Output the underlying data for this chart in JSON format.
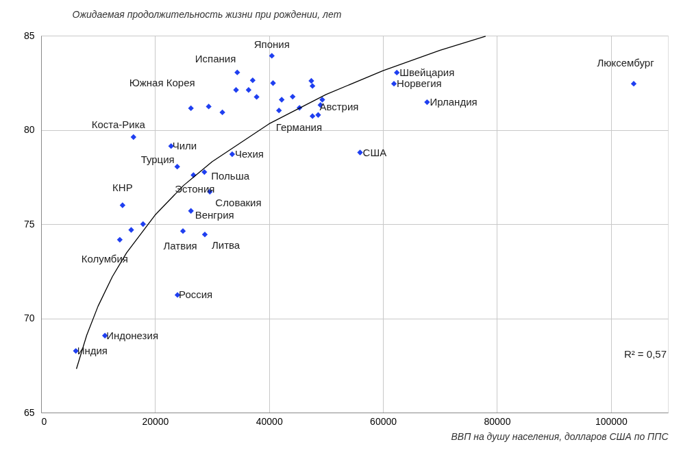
{
  "chart_data": {
    "type": "scatter",
    "ylabel": "Ожидаемая продолжительность жизни при рождении, лет",
    "xlabel": "ВВП на душу населения, долларов США по ППС",
    "xlim": [
      0,
      110000
    ],
    "xticks": [
      0,
      20000,
      40000,
      60000,
      80000,
      100000
    ],
    "ylim": [
      65,
      85
    ],
    "yticks": [
      65,
      70,
      75,
      80,
      85
    ],
    "grid": true,
    "marker": "diamond",
    "series": [
      {
        "color": "#1f3ff0",
        "x": [
          40490,
          34420,
          37130,
          40700,
          34210,
          36410,
          37820,
          47420,
          47620,
          42220,
          44140,
          49340,
          41740,
          45340,
          49020,
          47620,
          48620,
          26290,
          29410,
          31810,
          16210,
          22810,
          23890,
          26730,
          28650,
          33530,
          29610,
          14290,
          26290,
          17890,
          15810,
          13810,
          24890,
          28730,
          23930,
          11200,
          6090,
          62420,
          61920,
          67730,
          55970,
          103990
        ],
        "values": [
          83.93,
          83.05,
          82.63,
          82.48,
          82.12,
          82.12,
          81.75,
          82.6,
          82.33,
          81.6,
          81.76,
          81.6,
          81.03,
          81.17,
          81.32,
          80.73,
          80.79,
          81.15,
          81.24,
          80.93,
          79.62,
          79.14,
          78.05,
          77.6,
          77.76,
          78.71,
          76.72,
          76.0,
          75.7,
          75.0,
          74.69,
          74.17,
          74.63,
          74.45,
          71.24,
          69.08,
          68.27,
          83.04,
          82.45,
          81.47,
          78.8,
          82.45
        ]
      },
      {
        "type": "line",
        "color": "#000000",
        "line_style": "solid",
        "marker": "none",
        "x": [
          6200,
          8000,
          10000,
          12500,
          15000,
          20000,
          25000,
          30000,
          40000,
          50000,
          60000,
          70000,
          78000
        ],
        "values": [
          67.32,
          69.1,
          70.65,
          72.21,
          73.48,
          75.48,
          77.05,
          78.31,
          80.32,
          81.88,
          83.14,
          84.22,
          84.97
        ]
      }
    ],
    "annotations": [
      {
        "text": "Япония",
        "x": 40490,
        "y": 83.93
      },
      {
        "text": "Испания",
        "x": 34420,
        "y": 83.05
      },
      {
        "text": "Южная Корея",
        "x": 29410,
        "y": 81.24
      },
      {
        "text": "Коста-Рика",
        "x": 16210,
        "y": 79.62
      },
      {
        "text": "Чили",
        "x": 22810,
        "y": 79.14
      },
      {
        "text": "Турция",
        "x": 23890,
        "y": 78.05
      },
      {
        "text": "Чехия",
        "x": 33530,
        "y": 78.71
      },
      {
        "text": "Польша",
        "x": 28650,
        "y": 77.76
      },
      {
        "text": "Эстония",
        "x": 26730,
        "y": 77.6
      },
      {
        "text": "КНР",
        "x": 14290,
        "y": 76.0
      },
      {
        "text": "Словакия",
        "x": 29610,
        "y": 76.72
      },
      {
        "text": "Венгрия",
        "x": 26290,
        "y": 75.7
      },
      {
        "text": "Литва",
        "x": 28730,
        "y": 74.45
      },
      {
        "text": "Латвия",
        "x": 24890,
        "y": 74.63
      },
      {
        "text": "Колумбия",
        "x": 13810,
        "y": 74.17
      },
      {
        "text": "Россия",
        "x": 23930,
        "y": 71.24
      },
      {
        "text": "Индонезия",
        "x": 11200,
        "y": 69.08
      },
      {
        "text": "Индия",
        "x": 6090,
        "y": 68.27
      },
      {
        "text": "Австрия",
        "x": 49340,
        "y": 81.6
      },
      {
        "text": "Германия",
        "x": 48620,
        "y": 80.79
      },
      {
        "text": "Швейцария",
        "x": 62420,
        "y": 83.04
      },
      {
        "text": "Норвегия",
        "x": 61920,
        "y": 82.45
      },
      {
        "text": "Ирландия",
        "x": 67730,
        "y": 81.47
      },
      {
        "text": "США",
        "x": 55970,
        "y": 78.8
      },
      {
        "text": "Люксембург",
        "x": 103990,
        "y": 82.45
      },
      "R² = 0,57"
    ]
  }
}
